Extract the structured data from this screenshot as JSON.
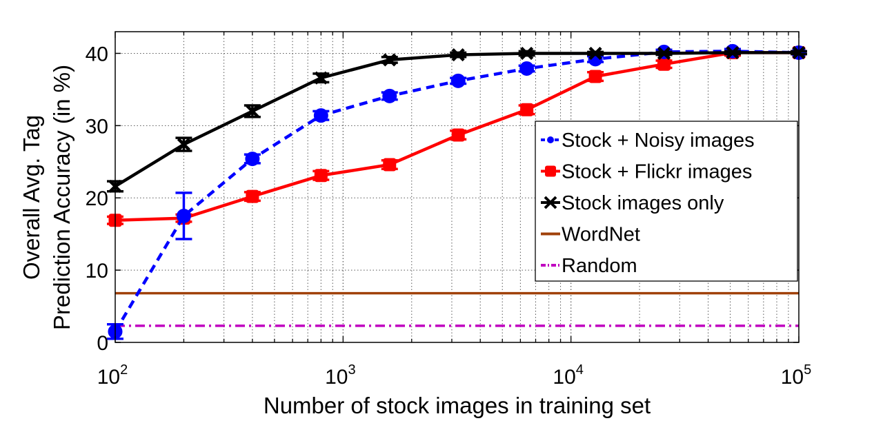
{
  "chart_data": {
    "type": "line",
    "title": "",
    "xlabel": "Number of stock images in training set",
    "ylabel_lines": [
      "Overall Avg. Tag",
      "Prediction Accuracy (in %)"
    ],
    "x_scale": "log",
    "xlim": [
      100,
      100000
    ],
    "ylim": [
      0,
      43
    ],
    "grid": true,
    "legend_position": "center-right",
    "x_ticks": [
      {
        "base": "10",
        "exp": "2",
        "value": 100
      },
      {
        "base": "10",
        "exp": "3",
        "value": 1000
      },
      {
        "base": "10",
        "exp": "4",
        "value": 10000
      },
      {
        "base": "10",
        "exp": "5",
        "value": 100000
      }
    ],
    "y_ticks": [
      {
        "label": "0",
        "value": 0
      },
      {
        "label": "10",
        "value": 10
      },
      {
        "label": "20",
        "value": 20
      },
      {
        "label": "30",
        "value": 30
      },
      {
        "label": "40",
        "value": 40
      }
    ],
    "x": [
      100,
      200,
      400,
      800,
      1600,
      3200,
      6400,
      12800,
      25600,
      51200,
      100000
    ],
    "series": [
      {
        "name": "Stock + Noisy images",
        "color": "#0000ff",
        "style": "dashed",
        "marker": "circle",
        "values": [
          1.5,
          17.5,
          25.4,
          31.4,
          34.1,
          36.2,
          37.9,
          39.2,
          40.2,
          40.3,
          40.1
        ],
        "errors": [
          1.0,
          3.2,
          0.6,
          0.6,
          0.5,
          0.4,
          0.4,
          0.4,
          0.3,
          0.3,
          0.2
        ]
      },
      {
        "name": "Stock + Flickr images",
        "color": "#ff0000",
        "style": "solid",
        "marker": "square",
        "values": [
          16.9,
          17.2,
          20.2,
          23.1,
          24.6,
          28.7,
          32.2,
          36.8,
          38.5,
          40.1,
          40.1
        ],
        "errors": [
          0.5,
          0.5,
          0.6,
          0.6,
          0.6,
          0.6,
          0.6,
          0.6,
          0.5,
          0.4,
          0.2
        ]
      },
      {
        "name": "Stock images only",
        "color": "#000000",
        "style": "solid",
        "marker": "x",
        "values": [
          21.6,
          27.4,
          32.0,
          36.6,
          39.1,
          39.8,
          40.0,
          40.0,
          40.0,
          40.1,
          40.1
        ],
        "errors": [
          0.7,
          0.9,
          0.8,
          0.6,
          0.4,
          0.3,
          0.3,
          0.2,
          0.2,
          0.2,
          0.2
        ]
      },
      {
        "name": "WordNet",
        "color": "#a0410a",
        "style": "solid",
        "marker": "none",
        "constant": 6.8
      },
      {
        "name": "Random",
        "color": "#c000c0",
        "style": "dashdot",
        "marker": "none",
        "constant": 2.3
      }
    ]
  }
}
